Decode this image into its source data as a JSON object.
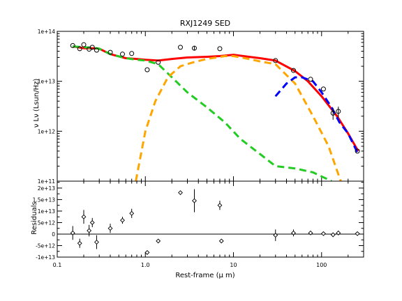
{
  "chart_data": [
    {
      "panel": "sed",
      "type": "line",
      "title": "RXJ1249 SED",
      "ylabel": "ν Lν (Lsun/Hz)",
      "xscale": "log",
      "yscale": "log",
      "xlim": [
        0.1,
        300
      ],
      "ylim": [
        100000000000,
        100000000000000
      ],
      "xtick_labels": [
        {
          "value": 0.1,
          "label": "0.1"
        },
        {
          "value": 1,
          "label": "1.0"
        },
        {
          "value": 10,
          "label": "10"
        },
        {
          "value": 100,
          "label": "100"
        }
      ],
      "ytick_labels": [
        {
          "value": 100000000000,
          "label": "1e+11"
        },
        {
          "value": 1000000000000,
          "label": "1e+12"
        },
        {
          "value": 10000000000000,
          "label": "1e+13"
        },
        {
          "value": 100000000000000,
          "label": "1e+14"
        }
      ],
      "observed": {
        "x": [
          0.15,
          0.18,
          0.2,
          0.23,
          0.25,
          0.28,
          0.4,
          0.55,
          0.7,
          1.05,
          1.4,
          2.5,
          3.6,
          7.0,
          30,
          48,
          75,
          105,
          135,
          155,
          255
        ],
        "y": [
          52000000000000,
          45000000000000,
          54000000000000,
          44000000000000,
          48000000000000,
          42000000000000,
          38000000000000,
          35000000000000,
          36000000000000,
          17000000000000,
          24000000000000,
          48000000000000,
          46000000000000,
          45000000000000,
          26000000000000,
          16500000000000,
          11000000000000,
          7000000000000,
          2300000000000,
          2500000000000,
          400000000000
        ],
        "yerr": [
          0,
          0,
          0,
          0,
          0,
          0,
          0,
          0,
          0,
          0,
          0,
          0,
          4000000000000,
          0,
          0,
          0,
          0,
          0,
          600000000000,
          600000000000,
          0
        ]
      },
      "series": [
        {
          "color": "#ff0000",
          "style": "solid",
          "x": [
            0.15,
            0.2,
            0.25,
            0.3,
            0.4,
            0.6,
            0.8,
            1.0,
            1.4,
            2.0,
            3.0,
            5.0,
            7.0,
            10,
            15,
            20,
            30,
            50,
            70,
            100,
            150,
            200,
            260
          ],
          "y": [
            50000000000000,
            46000000000000,
            46000000000000,
            45000000000000,
            35000000000000,
            29000000000000,
            28000000000000,
            27000000000000,
            26000000000000,
            28000000000000,
            30000000000000,
            31000000000000,
            32000000000000,
            34000000000000,
            31000000000000,
            29000000000000,
            26000000000000,
            16000000000000,
            10000000000000,
            5000000000000,
            2000000000000,
            900000000000,
            400000000000
          ]
        },
        {
          "color": "#22cc22",
          "style": "dashed",
          "x": [
            0.15,
            0.2,
            0.25,
            0.3,
            0.4,
            0.6,
            0.8,
            1.0,
            1.4,
            2.0,
            3.0,
            5.0,
            8.0,
            12,
            20,
            30,
            50,
            80,
            130
          ],
          "y": [
            50000000000000,
            48000000000000,
            47000000000000,
            45000000000000,
            35000000000000,
            29000000000000,
            27000000000000,
            26000000000000,
            22000000000000,
            12000000000000,
            6000000000000,
            3000000000000,
            1500000000000,
            700000000000,
            350000000000,
            200000000000,
            180000000000,
            150000000000,
            100000000000
          ]
        },
        {
          "color": "#ffa500",
          "style": "dashed",
          "x": [
            0.78,
            1.0,
            1.3,
            1.8,
            2.5,
            3.5,
            5.0,
            8.0,
            10,
            15,
            20,
            30,
            50,
            80,
            120,
            165
          ],
          "y": [
            100000000000,
            1000000000000,
            4000000000000,
            12000000000000,
            20000000000000,
            24000000000000,
            28000000000000,
            32000000000000,
            32000000000000,
            28000000000000,
            25000000000000,
            22000000000000,
            9000000000000,
            2000000000000,
            500000000000,
            100000000000
          ]
        },
        {
          "color": "#0000ff",
          "style": "dashed",
          "x": [
            30,
            40,
            50,
            60,
            80,
            100,
            130,
            160,
            200,
            260
          ],
          "y": [
            5000000000000,
            9000000000000,
            12000000000000,
            12000000000000,
            10000000000000,
            6000000000000,
            3000000000000,
            1500000000000,
            900000000000,
            350000000000
          ]
        }
      ]
    },
    {
      "panel": "residuals",
      "type": "scatter",
      "xlabel": "Rest-frame (μ m)",
      "ylabel": "Residuals",
      "xscale": "log",
      "xlim": [
        0.1,
        300
      ],
      "ylim": [
        -10000000000000,
        23000000000000
      ],
      "xtick_labels": [
        {
          "value": 0.1,
          "label": "0.1"
        },
        {
          "value": 1,
          "label": "1.0"
        },
        {
          "value": 10,
          "label": "10"
        },
        {
          "value": 100,
          "label": "100"
        }
      ],
      "ytick_labels": [
        {
          "value": -10000000000000,
          "label": "-1e+13"
        },
        {
          "value": -5000000000000,
          "label": "-5e+12"
        },
        {
          "value": 0,
          "label": "0"
        },
        {
          "value": 5000000000000,
          "label": "5e+12"
        },
        {
          "value": 10000000000000,
          "label": "1e+13"
        },
        {
          "value": 15000000000000,
          "label": "1.5e+13"
        },
        {
          "value": 20000000000000,
          "label": "2e+13"
        }
      ],
      "x": [
        0.15,
        0.18,
        0.2,
        0.23,
        0.25,
        0.28,
        0.4,
        0.55,
        0.7,
        1.05,
        1.4,
        2.5,
        3.6,
        7.0,
        7.3,
        30,
        48,
        75,
        105,
        135,
        155,
        255
      ],
      "y": [
        500000000000,
        -4000000000000,
        7500000000000,
        1500000000000,
        5000000000000,
        -3500000000000,
        2500000000000,
        6000000000000,
        9000000000000,
        -8000000000000,
        -3000000000000,
        18000000000000,
        14500000000000,
        12500000000000,
        -3000000000000,
        -500000000000,
        500000000000,
        500000000000,
        200000000000,
        -300000000000,
        500000000000,
        200000000000
      ],
      "yerr": [
        3000000000000,
        2000000000000,
        3000000000000,
        2500000000000,
        2000000000000,
        3000000000000,
        2000000000000,
        1500000000000,
        2000000000000,
        0,
        0,
        0,
        5000000000000,
        2000000000000,
        0,
        2500000000000,
        1500000000000,
        500000000000,
        500000000000,
        1000000000000,
        1000000000000,
        0
      ]
    }
  ]
}
